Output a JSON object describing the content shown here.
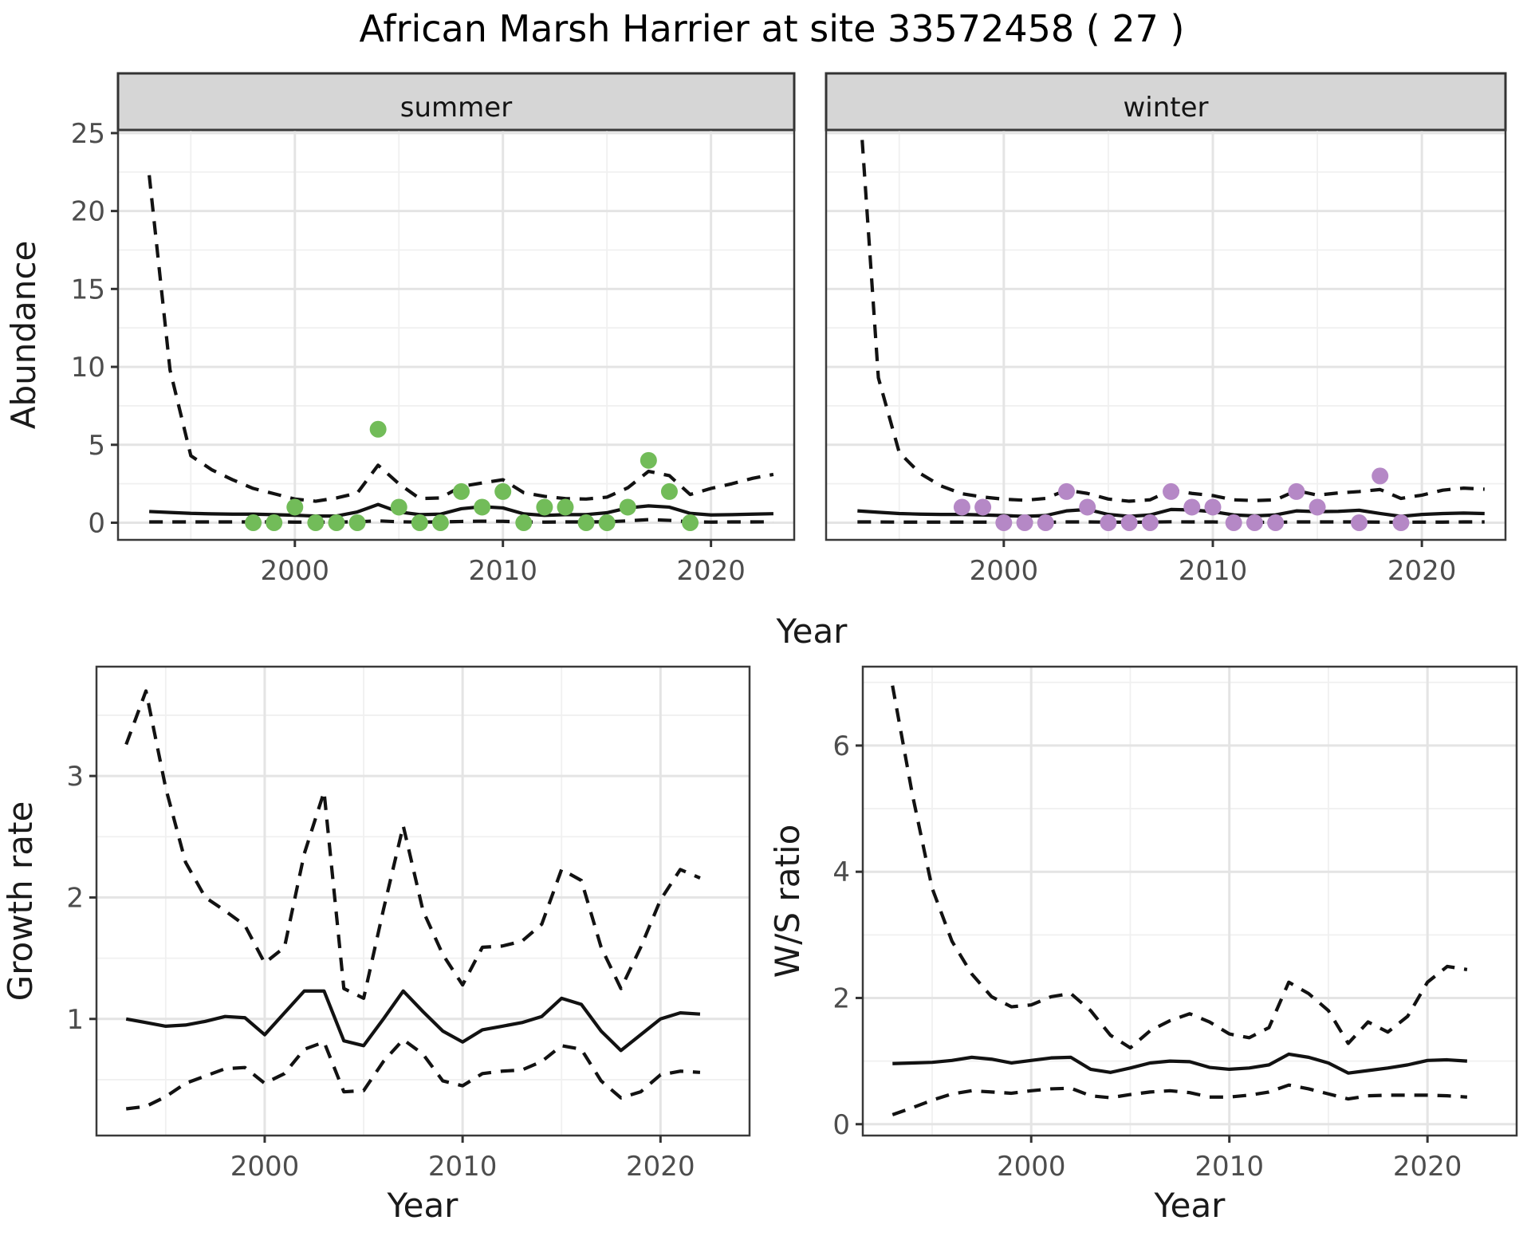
{
  "title": "African Marsh Harrier at site 33572458 ( 27 )",
  "colors": {
    "summer_point": "#72BC59",
    "winter_point": "#B588C6",
    "line": "#121212",
    "grid_major": "#E4E4E4",
    "grid_minor": "#F0F0F0",
    "strip_fill": "#D6D6D6",
    "strip_border": "#333333",
    "panel_border": "#3A3A3A",
    "tick_mark": "#333333",
    "tick_label": "#4D4D4D",
    "axis_title": "#1A1A1A",
    "background": "#FFFFFF"
  },
  "chart_data": [
    {
      "id": "summer",
      "type": "line",
      "facet_label": "summer",
      "xlabel": "Year",
      "ylabel": "Abundance",
      "xlim": [
        1991.5,
        2024.0
      ],
      "ylim": [
        -1.1,
        25.2
      ],
      "x_ticks": [
        2000,
        2010,
        2020
      ],
      "x_minor": [
        1995,
        2005,
        2015
      ],
      "y_ticks": [
        0,
        5,
        10,
        15,
        20,
        25
      ],
      "y_minor": [
        2.5,
        7.5,
        12.5,
        17.5,
        22.5
      ],
      "show_y_labels": true,
      "years": [
        1993,
        1994,
        1995,
        1996,
        1997,
        1998,
        1999,
        2000,
        2001,
        2002,
        2003,
        2004,
        2005,
        2006,
        2007,
        2008,
        2009,
        2010,
        2011,
        2012,
        2013,
        2014,
        2015,
        2016,
        2017,
        2018,
        2019,
        2020,
        2021,
        2022,
        2023
      ],
      "fit": [
        0.72,
        0.66,
        0.6,
        0.57,
        0.55,
        0.55,
        0.52,
        0.48,
        0.43,
        0.43,
        0.69,
        1.17,
        0.69,
        0.52,
        0.55,
        0.9,
        1.03,
        0.95,
        0.57,
        0.47,
        0.52,
        0.52,
        0.64,
        0.95,
        1.08,
        1.0,
        0.6,
        0.5,
        0.52,
        0.55,
        0.58
      ],
      "upper": [
        22.3,
        9.8,
        4.3,
        3.4,
        2.76,
        2.2,
        1.86,
        1.52,
        1.38,
        1.59,
        1.9,
        3.69,
        2.5,
        1.55,
        1.59,
        2.33,
        2.55,
        2.76,
        1.93,
        1.69,
        1.55,
        1.52,
        1.64,
        2.24,
        3.3,
        3.02,
        1.81,
        2.2,
        2.5,
        2.85,
        3.1
      ],
      "lower": [
        0.05,
        0.05,
        0.05,
        0.05,
        0.05,
        0.05,
        0.05,
        0.04,
        0.04,
        0.04,
        0.06,
        0.12,
        0.06,
        0.04,
        0.05,
        0.08,
        0.1,
        0.09,
        0.05,
        0.04,
        0.05,
        0.05,
        0.06,
        0.12,
        0.2,
        0.15,
        0.05,
        0.04,
        0.05,
        0.05,
        0.06
      ],
      "points": {
        "years": [
          1998,
          1999,
          2000,
          2001,
          2002,
          2003,
          2004,
          2005,
          2006,
          2007,
          2008,
          2009,
          2010,
          2011,
          2012,
          2013,
          2014,
          2015,
          2016,
          2017,
          2018,
          2019
        ],
        "values": [
          0,
          0,
          1,
          0,
          0,
          0,
          6,
          1,
          0,
          0,
          2,
          1,
          2,
          0,
          1,
          1,
          0,
          0,
          1,
          4,
          2,
          0
        ]
      },
      "point_color_key": "summer_point"
    },
    {
      "id": "winter",
      "type": "line",
      "facet_label": "winter",
      "xlabel": "Year",
      "ylabel": "Abundance",
      "xlim": [
        1991.5,
        2024.0
      ],
      "ylim": [
        -1.1,
        25.2
      ],
      "x_ticks": [
        2000,
        2010,
        2020
      ],
      "x_minor": [
        1995,
        2005,
        2015
      ],
      "y_ticks": [
        0,
        5,
        10,
        15,
        20,
        25
      ],
      "y_minor": [
        2.5,
        7.5,
        12.5,
        17.5,
        22.5
      ],
      "show_y_labels": false,
      "years": [
        1993,
        1994,
        1995,
        1996,
        1997,
        1998,
        1999,
        2000,
        2001,
        2002,
        2003,
        2004,
        2005,
        2006,
        2007,
        2008,
        2009,
        2010,
        2011,
        2012,
        2013,
        2014,
        2015,
        2016,
        2017,
        2018,
        2019,
        2020,
        2021,
        2022,
        2023
      ],
      "fit": [
        0.76,
        0.67,
        0.59,
        0.55,
        0.53,
        0.53,
        0.5,
        0.46,
        0.41,
        0.46,
        0.76,
        0.85,
        0.53,
        0.41,
        0.5,
        0.85,
        0.82,
        0.71,
        0.5,
        0.44,
        0.5,
        0.76,
        0.71,
        0.73,
        0.8,
        0.59,
        0.41,
        0.53,
        0.59,
        0.62,
        0.59
      ],
      "upper": [
        29.0,
        9.3,
        4.5,
        3.16,
        2.36,
        1.86,
        1.65,
        1.51,
        1.44,
        1.56,
        2.09,
        1.88,
        1.52,
        1.38,
        1.47,
        2.09,
        1.88,
        1.74,
        1.47,
        1.42,
        1.47,
        2.06,
        1.77,
        1.91,
        2.0,
        2.13,
        1.56,
        1.77,
        2.09,
        2.22,
        2.15
      ],
      "lower": [
        0.05,
        0.05,
        0.04,
        0.04,
        0.04,
        0.04,
        0.04,
        0.03,
        0.03,
        0.03,
        0.05,
        0.05,
        0.04,
        0.03,
        0.04,
        0.06,
        0.05,
        0.05,
        0.03,
        0.03,
        0.03,
        0.05,
        0.05,
        0.05,
        0.05,
        0.04,
        0.03,
        0.04,
        0.04,
        0.05,
        0.05
      ],
      "points": {
        "years": [
          1998,
          1999,
          2000,
          2001,
          2002,
          2003,
          2004,
          2005,
          2006,
          2007,
          2008,
          2009,
          2010,
          2011,
          2012,
          2013,
          2014,
          2015,
          2017,
          2018,
          2019
        ],
        "values": [
          1,
          1,
          0,
          0,
          0,
          2,
          1,
          0,
          0,
          0,
          2,
          1,
          1,
          0,
          0,
          0,
          2,
          1,
          0,
          3,
          0
        ]
      },
      "point_color_key": "winter_point"
    },
    {
      "id": "growth",
      "type": "line",
      "facet_label": "",
      "xlabel": "Year",
      "ylabel": "Growth rate",
      "xlim": [
        1991.5,
        2024.5
      ],
      "ylim": [
        0.04,
        3.9
      ],
      "x_ticks": [
        2000,
        2010,
        2020
      ],
      "x_minor": [
        1995,
        2005,
        2015
      ],
      "y_ticks": [
        1,
        2,
        3
      ],
      "y_minor": [
        0.5,
        1.5,
        2.5,
        3.5
      ],
      "show_y_labels": true,
      "years": [
        1993,
        1994,
        1995,
        1996,
        1997,
        1998,
        1999,
        2000,
        2001,
        2002,
        2003,
        2004,
        2005,
        2006,
        2007,
        2008,
        2009,
        2010,
        2011,
        2012,
        2013,
        2014,
        2015,
        2016,
        2017,
        2018,
        2019,
        2020,
        2021,
        2022
      ],
      "fit": [
        1.0,
        0.97,
        0.94,
        0.95,
        0.98,
        1.02,
        1.01,
        0.87,
        1.05,
        1.23,
        1.23,
        0.82,
        0.78,
        1.0,
        1.23,
        1.06,
        0.9,
        0.81,
        0.91,
        0.94,
        0.97,
        1.02,
        1.17,
        1.12,
        0.9,
        0.74,
        0.87,
        1.0,
        1.05,
        1.04
      ],
      "upper": [
        3.26,
        3.7,
        2.9,
        2.29,
        2.0,
        1.89,
        1.77,
        1.46,
        1.59,
        2.36,
        2.87,
        1.25,
        1.17,
        1.9,
        2.59,
        1.89,
        1.53,
        1.28,
        1.59,
        1.6,
        1.64,
        1.78,
        2.23,
        2.14,
        1.59,
        1.25,
        1.59,
        1.98,
        2.23,
        2.16
      ],
      "lower": [
        0.26,
        0.28,
        0.36,
        0.47,
        0.53,
        0.59,
        0.6,
        0.47,
        0.55,
        0.75,
        0.81,
        0.4,
        0.41,
        0.65,
        0.83,
        0.71,
        0.49,
        0.45,
        0.55,
        0.57,
        0.58,
        0.65,
        0.78,
        0.75,
        0.49,
        0.35,
        0.4,
        0.54,
        0.57,
        0.56
      ],
      "points": {
        "years": [],
        "values": []
      },
      "point_color_key": "line"
    },
    {
      "id": "ws",
      "type": "line",
      "facet_label": "",
      "xlabel": "Year",
      "ylabel": "W/S ratio",
      "xlim": [
        1991.5,
        2024.5
      ],
      "ylim": [
        -0.18,
        7.25
      ],
      "x_ticks": [
        2000,
        2010,
        2020
      ],
      "x_minor": [
        1995,
        2005,
        2015
      ],
      "y_ticks": [
        0,
        2,
        4,
        6
      ],
      "y_minor": [
        1,
        3,
        5,
        7
      ],
      "show_y_labels": true,
      "years": [
        1993,
        1994,
        1995,
        1996,
        1997,
        1998,
        1999,
        2000,
        2001,
        2002,
        2003,
        2004,
        2005,
        2006,
        2007,
        2008,
        2009,
        2010,
        2011,
        2012,
        2013,
        2014,
        2015,
        2016,
        2017,
        2018,
        2019,
        2020,
        2021,
        2022
      ],
      "fit": [
        0.96,
        0.97,
        0.98,
        1.01,
        1.06,
        1.03,
        0.97,
        1.01,
        1.05,
        1.06,
        0.87,
        0.82,
        0.89,
        0.97,
        1.0,
        0.99,
        0.9,
        0.87,
        0.89,
        0.94,
        1.11,
        1.06,
        0.97,
        0.81,
        0.85,
        0.89,
        0.94,
        1.01,
        1.02,
        1.0
      ],
      "upper": [
        6.95,
        5.23,
        3.74,
        2.9,
        2.38,
        2.02,
        1.86,
        1.89,
        2.02,
        2.07,
        1.8,
        1.41,
        1.21,
        1.48,
        1.64,
        1.75,
        1.62,
        1.43,
        1.37,
        1.53,
        2.25,
        2.07,
        1.8,
        1.28,
        1.62,
        1.46,
        1.71,
        2.25,
        2.5,
        2.45
      ],
      "lower": [
        0.15,
        0.26,
        0.38,
        0.48,
        0.53,
        0.51,
        0.49,
        0.53,
        0.56,
        0.57,
        0.45,
        0.42,
        0.47,
        0.51,
        0.53,
        0.5,
        0.43,
        0.43,
        0.46,
        0.51,
        0.62,
        0.56,
        0.48,
        0.4,
        0.45,
        0.46,
        0.46,
        0.46,
        0.45,
        0.43
      ],
      "points": {
        "years": [],
        "values": []
      },
      "point_color_key": "line"
    }
  ],
  "line_styles": {
    "fit": "solid",
    "upper": "dashed",
    "lower": "dashed"
  }
}
